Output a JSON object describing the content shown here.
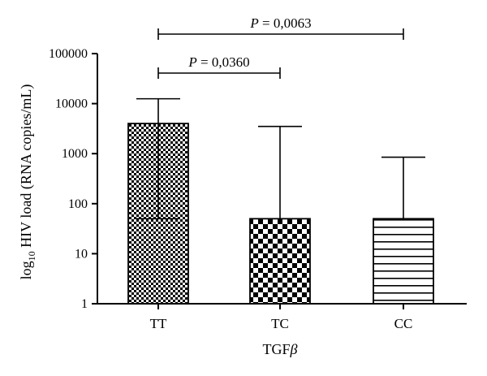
{
  "chart_data": {
    "type": "bar",
    "title": "",
    "xlabel": "TGF",
    "xlabel_symbol": "β",
    "ylabel_prefix": "log",
    "ylabel_subscript": "10",
    "ylabel_rest": " HIV load (RNA copies/mL)",
    "y_scale": "log",
    "ylim": [
      1,
      100000
    ],
    "yticks": [
      1,
      10,
      100,
      1000,
      10000,
      100000
    ],
    "categories": [
      "TT",
      "TC",
      "CC"
    ],
    "values": [
      4000,
      50,
      50
    ],
    "error_upper": [
      12500,
      3500,
      850
    ],
    "error_lower": [
      50,
      null,
      null
    ],
    "bar_patterns": [
      "fine-checker",
      "coarse-checker",
      "horizontal-lines"
    ],
    "grid": false,
    "legend": "none",
    "annotations": [
      {
        "from": "TT",
        "to": "TC",
        "label_p": "P",
        "label_rest": " = 0,0360"
      },
      {
        "from": "TT",
        "to": "CC",
        "label_p": "P",
        "label_rest": " = 0,0063"
      }
    ]
  }
}
